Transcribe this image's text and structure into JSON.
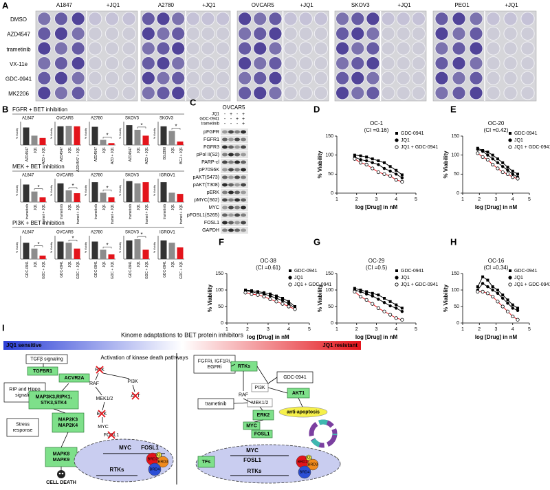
{
  "panel_A": {
    "label": "A",
    "treatment_label": "+JQ1",
    "cell_lines": [
      "A1847",
      "A2780",
      "OVCAR5",
      "SKOV3",
      "PEO1"
    ],
    "rows": [
      "DMSO",
      "AZD4547",
      "trametinib",
      "VX-11e",
      "GDC-0941",
      "MK2206"
    ]
  },
  "panel_B": {
    "label": "B",
    "type": "bar",
    "ylabel": "% Viability",
    "colors": [
      "#333333",
      "#8c8c8c",
      "#e3141b"
    ],
    "ylim": [
      0,
      100
    ],
    "groups": [
      {
        "title": "FGFR + BET inhibition",
        "charts": [
          {
            "cell_line": "A1847",
            "categories": [
              "AZD4547",
              "JQ1",
              "AZD + JQ1"
            ],
            "values": [
              75,
              40,
              30
            ]
          },
          {
            "cell_line": "OVCAR5",
            "categories": [
              "AZD4547",
              "JQ1",
              "AZD4547 + JQ1"
            ],
            "values": [
              80,
              82,
              80
            ]
          },
          {
            "cell_line": "A2780",
            "categories": [
              "AZD4547",
              "JQ1",
              "AZD + JQ1"
            ],
            "values": [
              78,
              22,
              8
            ],
            "significance": "*"
          },
          {
            "cell_line": "SKOV3",
            "categories": [
              "AZD4547",
              "JQ1",
              "AZD + JQ1"
            ],
            "values": [
              85,
              65,
              40
            ],
            "significance": "*"
          },
          {
            "cell_line": "SKOV3",
            "categories": [
              "BGJ398",
              "JQ1",
              "BGJ + JQ1"
            ],
            "values": [
              80,
              60,
              15
            ],
            "significance": "*"
          }
        ]
      },
      {
        "title": "MEK + BET inhibition",
        "charts": [
          {
            "cell_line": "A1847",
            "categories": [
              "trametinib",
              "JQ1",
              "tramet + JQ1"
            ],
            "values": [
              75,
              45,
              20
            ],
            "significance": "*"
          },
          {
            "cell_line": "OVCAR5",
            "categories": [
              "trametinib",
              "JQ1",
              "tramet + JQ1"
            ],
            "values": [
              80,
              50,
              38
            ],
            "significance": "*"
          },
          {
            "cell_line": "A2780",
            "categories": [
              "trametinib",
              "JQ1",
              "tramet + JQ1"
            ],
            "values": [
              85,
              40,
              20
            ],
            "significance": "*"
          },
          {
            "cell_line": "SKOV3",
            "categories": [
              "trametinib",
              "JQ1",
              "tramet + JQ1"
            ],
            "values": [
              90,
              80,
              85
            ]
          },
          {
            "cell_line": "IGROV1",
            "categories": [
              "trametinib",
              "JQ1",
              "tramet + JQ1"
            ],
            "values": [
              85,
              40,
              35
            ]
          }
        ]
      },
      {
        "title": "PI3K + BET inhibition",
        "charts": [
          {
            "cell_line": "A1847",
            "categories": [
              "GDC-0941",
              "JQ1",
              "GDC + JQ1"
            ],
            "values": [
              70,
              45,
              15
            ],
            "significance": "*"
          },
          {
            "cell_line": "OVCAR5",
            "categories": [
              "GDC-0941",
              "JQ1",
              "GDC + JQ1"
            ],
            "values": [
              75,
              70,
              45
            ],
            "significance": "*"
          },
          {
            "cell_line": "A2780",
            "categories": [
              "GDC-0941",
              "JQ1",
              "GDC + JQ1"
            ],
            "values": [
              75,
              40,
              20
            ],
            "significance": "*"
          },
          {
            "cell_line": "SKOV3",
            "categories": [
              "GDC-0941",
              "JQ1",
              "GDC + JQ1"
            ],
            "values": [
              80,
              85,
              40
            ],
            "significance": "*"
          },
          {
            "cell_line": "IGROV1",
            "categories": [
              "GDC-0941",
              "JQ1",
              "GDC + JQ1"
            ],
            "values": [
              80,
              70,
              50
            ]
          }
        ]
      }
    ]
  },
  "panel_C": {
    "label": "C",
    "title": "OVCAR5",
    "treatments": [
      {
        "name": "JQ1",
        "signs": [
          "-",
          "+",
          "-",
          "+"
        ]
      },
      {
        "name": "GDC-0941",
        "signs": [
          "-",
          "-",
          "+",
          "+"
        ]
      },
      {
        "name": "trametinib",
        "signs": [
          "-",
          "-",
          "-",
          "+"
        ]
      }
    ],
    "proteins": [
      "pFGFR",
      "FGFR1",
      "FGFR3",
      "pPol II(S2)",
      "PARP-cl",
      "pP70S6K",
      "pAKT(S473)",
      "pAKT(T308)",
      "pERK",
      "pMYC(S62)",
      "MYC",
      "pFOSL1(S265)",
      "FOSL1",
      "GAPDH"
    ]
  },
  "chart_data": [
    {
      "type": "line",
      "panel": "D",
      "title": "OC-1",
      "subtitle": "(CI =0.16)",
      "xlabel": "log [Drug] in nM",
      "ylabel": "% Viability",
      "xlim": [
        1,
        5
      ],
      "xticks": [
        1,
        2,
        3,
        4,
        5
      ],
      "ylim": [
        0,
        150
      ],
      "yticks": [
        0,
        50,
        100,
        150
      ],
      "x": [
        1.9,
        2.2,
        2.5,
        2.8,
        3.1,
        3.4,
        3.7,
        4.0,
        4.3
      ],
      "series": [
        {
          "name": "GDC-0941",
          "color": "#000000",
          "marker": "square",
          "values": [
            100,
            98,
            95,
            90,
            85,
            80,
            70,
            60,
            48
          ]
        },
        {
          "name": "JQ1",
          "color": "#000000",
          "marker": "circle",
          "values": [
            95,
            88,
            85,
            80,
            75,
            65,
            58,
            50,
            40
          ]
        },
        {
          "name": "JQ1 + GDC-0941",
          "color": "#e3141b",
          "marker": "open-circle",
          "values": [
            90,
            80,
            75,
            65,
            55,
            50,
            45,
            35,
            30
          ]
        }
      ]
    },
    {
      "type": "line",
      "panel": "E",
      "title": "OC-20",
      "subtitle": "(CI =0.42)",
      "xlabel": "log [Drug] in nM",
      "ylabel": "% Viability",
      "xlim": [
        1,
        5
      ],
      "xticks": [
        1,
        2,
        3,
        4,
        5
      ],
      "ylim": [
        0,
        150
      ],
      "yticks": [
        0,
        50,
        100,
        150
      ],
      "x": [
        1.9,
        2.2,
        2.5,
        2.8,
        3.1,
        3.4,
        3.7,
        4.0,
        4.3
      ],
      "series": [
        {
          "name": "GDC-0941",
          "color": "#000000",
          "marker": "square",
          "values": [
            118,
            112,
            108,
            100,
            90,
            80,
            68,
            58,
            50
          ]
        },
        {
          "name": "JQ1",
          "color": "#000000",
          "marker": "circle",
          "values": [
            115,
            110,
            100,
            90,
            80,
            70,
            60,
            50,
            42
          ]
        },
        {
          "name": "JQ1 + GDC-0941",
          "color": "#e3141b",
          "marker": "open-circle",
          "values": [
            105,
            95,
            88,
            75,
            65,
            55,
            50,
            42,
            38
          ]
        }
      ]
    },
    {
      "type": "line",
      "panel": "F",
      "title": "OC-38",
      "subtitle": "(CI =0.61)",
      "xlabel": "log [Drug] in nM",
      "ylabel": "% Viability",
      "xlim": [
        1,
        5
      ],
      "xticks": [
        1,
        2,
        3,
        4,
        5
      ],
      "ylim": [
        0,
        150
      ],
      "yticks": [
        0,
        50,
        100,
        150
      ],
      "x": [
        1.9,
        2.2,
        2.5,
        2.8,
        3.1,
        3.4,
        3.7,
        4.0,
        4.3
      ],
      "series": [
        {
          "name": "GDC-0941",
          "color": "#000000",
          "marker": "square",
          "values": [
            100,
            98,
            95,
            92,
            88,
            82,
            75,
            65,
            50
          ]
        },
        {
          "name": "JQ1",
          "color": "#000000",
          "marker": "circle",
          "values": [
            98,
            95,
            90,
            88,
            82,
            75,
            68,
            58,
            45
          ]
        },
        {
          "name": "JQ1 + GDC-0941",
          "color": "#e3141b",
          "marker": "open-circle",
          "values": [
            92,
            88,
            85,
            80,
            72,
            65,
            58,
            50,
            42
          ]
        }
      ]
    },
    {
      "type": "line",
      "panel": "G",
      "title": "OC-29",
      "subtitle": "(CI =0.5)",
      "xlabel": "log [Drug] in nM",
      "ylabel": "% Viability",
      "xlim": [
        1,
        5
      ],
      "xticks": [
        1,
        2,
        3,
        4,
        5
      ],
      "ylim": [
        0,
        150
      ],
      "yticks": [
        0,
        50,
        100,
        150
      ],
      "x": [
        1.9,
        2.2,
        2.5,
        2.8,
        3.1,
        3.4,
        3.7,
        4.0,
        4.3
      ],
      "series": [
        {
          "name": "GDC-0941",
          "color": "#000000",
          "marker": "square",
          "values": [
            105,
            100,
            95,
            90,
            85,
            75,
            65,
            55,
            45
          ]
        },
        {
          "name": "JQ1",
          "color": "#000000",
          "marker": "circle",
          "values": [
            100,
            95,
            88,
            82,
            72,
            62,
            52,
            45,
            35
          ]
        },
        {
          "name": "JQ1 + GDC-0941",
          "color": "#e3141b",
          "marker": "open-circle",
          "values": [
            95,
            80,
            70,
            58,
            45,
            35,
            25,
            15,
            10
          ]
        }
      ]
    },
    {
      "type": "line",
      "panel": "H",
      "title": "OC-16",
      "subtitle": "(CI =0.34)",
      "xlabel": "log [Drug] in nM",
      "ylabel": "% Viability",
      "xlim": [
        1,
        5
      ],
      "xticks": [
        1,
        2,
        3,
        4,
        5
      ],
      "ylim": [
        0,
        150
      ],
      "yticks": [
        0,
        50,
        100,
        150
      ],
      "x": [
        1.9,
        2.2,
        2.5,
        2.8,
        3.1,
        3.4,
        3.7,
        4.0,
        4.3
      ],
      "series": [
        {
          "name": "GDC-0941",
          "color": "#000000",
          "marker": "square",
          "values": [
            110,
            140,
            130,
            110,
            100,
            85,
            70,
            55,
            45
          ]
        },
        {
          "name": "JQ1",
          "color": "#000000",
          "marker": "circle",
          "values": [
            100,
            120,
            110,
            100,
            90,
            75,
            60,
            45,
            38
          ]
        },
        {
          "name": "JQ1 + GDC-0941",
          "color": "#e3141b",
          "marker": "open-circle",
          "values": [
            95,
            95,
            90,
            80,
            65,
            50,
            35,
            20,
            10
          ]
        }
      ]
    }
  ],
  "panel_I": {
    "label": "I",
    "title": "Kinome adaptations to BET protein inhibitors",
    "gradient_left": "JQ1 sensitive",
    "gradient_right": "JQ1 resistant",
    "left_boxes": [
      [
        "TGFβ signaling"
      ],
      [
        "TGFBR1"
      ],
      [
        "ACVR2A"
      ],
      [
        "RIP and Hippo",
        "signaling"
      ],
      [
        "MAP3K3,RIPK1,",
        "STK3,STK4"
      ],
      [
        "Stress",
        "response"
      ],
      [
        "MAP2K3",
        "MAP2K4"
      ],
      [
        "MAPK8",
        "MAPK9"
      ]
    ],
    "cell_death": "CELL DEATH",
    "pathway_title": "Activation of kinase death pathways",
    "pathway_nodes": [
      "RTK",
      "RAF",
      "PI3K",
      "MEK1/2",
      "ERK",
      "AKT",
      "MYC",
      "FOSL1"
    ],
    "left_cell": [
      "MYC",
      "FOSL1",
      "RTKs"
    ],
    "bromodomain": [
      "BRD2",
      "JQ1",
      "BRD3",
      "BRD4"
    ],
    "right_boxes": [
      [
        "FGFRi, IGF1Ri,",
        "EGFRi"
      ],
      [
        "RTKs"
      ],
      [
        "GDC-0941"
      ],
      [
        "PI3K"
      ],
      [
        "RAF"
      ],
      [
        "MEK1/2"
      ],
      [
        "trametinib"
      ],
      [
        "AKT1"
      ],
      [
        "ERK2"
      ],
      [
        "MYC"
      ],
      [
        "FOSL1"
      ],
      [
        "anti-apoptosis"
      ],
      [
        "Cell cycle"
      ]
    ],
    "right_cell": [
      "TFs",
      "MYC",
      "FOSL1",
      "RTKs"
    ]
  }
}
